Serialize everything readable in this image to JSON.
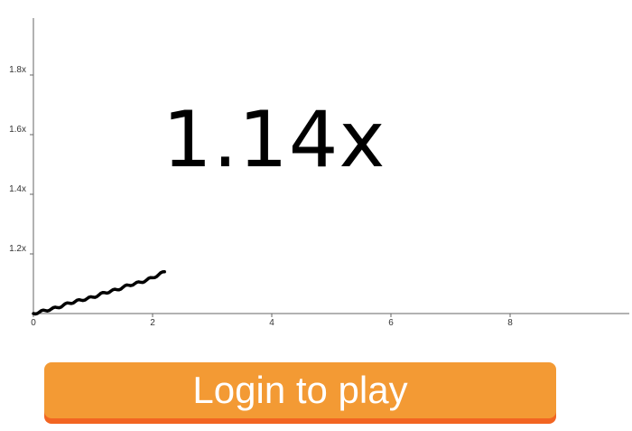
{
  "game": {
    "current_multiplier": "1.14x",
    "login_button_label": "Login to play"
  },
  "colors": {
    "button_fill": "#f39a34",
    "button_shadow": "#f26522",
    "curve": "#000000"
  },
  "chart_data": {
    "type": "line",
    "x_ticks": [
      "0",
      "2",
      "4",
      "6",
      "8"
    ],
    "y_ticks": [
      "1.2x",
      "1.4x",
      "1.6x",
      "1.8x"
    ],
    "xlim": [
      0,
      10
    ],
    "ylim": [
      1.0,
      2.0
    ],
    "series": [
      {
        "x": [
          0,
          0.2,
          0.4,
          0.6,
          0.8,
          1.0,
          1.2,
          1.4,
          1.6,
          1.8,
          2.0,
          2.2
        ],
        "y": [
          1.0,
          1.01,
          1.02,
          1.035,
          1.045,
          1.055,
          1.07,
          1.08,
          1.095,
          1.105,
          1.12,
          1.14
        ]
      }
    ]
  }
}
